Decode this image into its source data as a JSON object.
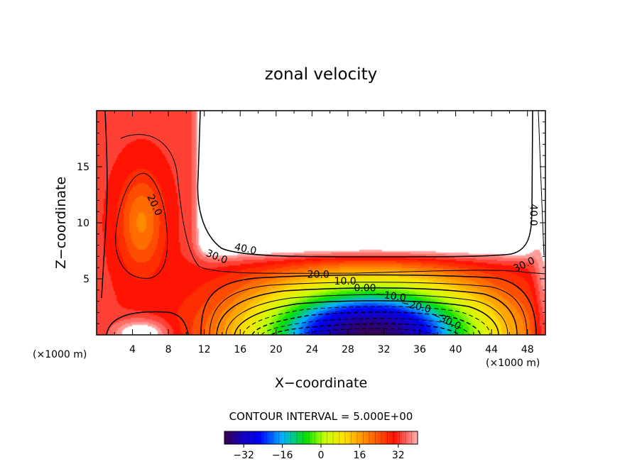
{
  "chart_data": {
    "type": "heatmap",
    "title": "zonal velocity",
    "xlabel": "X−coordinate",
    "ylabel": "Z−coordinate",
    "x_unit_left": "(×1000 m)",
    "x_unit_right": "(×1000 m)",
    "xlim": [
      0,
      50
    ],
    "ylim": [
      0,
      20
    ],
    "x_ticks": [
      4,
      8,
      12,
      16,
      20,
      24,
      28,
      32,
      36,
      40,
      44,
      48
    ],
    "y_ticks": [
      5,
      10,
      15
    ],
    "contour_interval_text": "CONTOUR INTERVAL = 5.000E+00",
    "contour_labels": [
      {
        "text": "20.0",
        "x": 6.5,
        "z": 11.6,
        "rotate": 65
      },
      {
        "text": "30.0",
        "x": 13.4,
        "z": 7.0,
        "rotate": 22
      },
      {
        "text": "40.0",
        "x": 16.6,
        "z": 7.7,
        "rotate": 12
      },
      {
        "text": "20.0",
        "x": 24.7,
        "z": 5.4,
        "rotate": 0
      },
      {
        "text": "10.0",
        "x": 27.7,
        "z": 4.8,
        "rotate": 0
      },
      {
        "text": "0.00",
        "x": 29.9,
        "z": 4.2,
        "rotate": 0
      },
      {
        "text": "−10.0",
        "x": 32.8,
        "z": 3.5,
        "rotate": 8
      },
      {
        "text": "−20.0",
        "x": 35.6,
        "z": 2.6,
        "rotate": 14
      },
      {
        "text": "−30.0",
        "x": 39.0,
        "z": 1.3,
        "rotate": 25
      },
      {
        "text": "40.0",
        "x": 48.7,
        "z": 10.7,
        "rotate": 90
      },
      {
        "text": "30.0",
        "x": 47.6,
        "z": 6.3,
        "rotate": -25
      }
    ],
    "colorbar": {
      "min": -40,
      "max": 40,
      "ticks": [
        -32,
        -16,
        0,
        16,
        32
      ],
      "tick_labels": [
        "−32",
        "−16",
        "0",
        "16",
        "32"
      ],
      "colors": [
        "#3a0050",
        "#1a00b0",
        "#0000ff",
        "#00b4ff",
        "#00e000",
        "#c8ff00",
        "#ffe000",
        "#ff8000",
        "#ff1000",
        "#ffb4b4"
      ]
    },
    "grid": false,
    "legend": "none"
  }
}
